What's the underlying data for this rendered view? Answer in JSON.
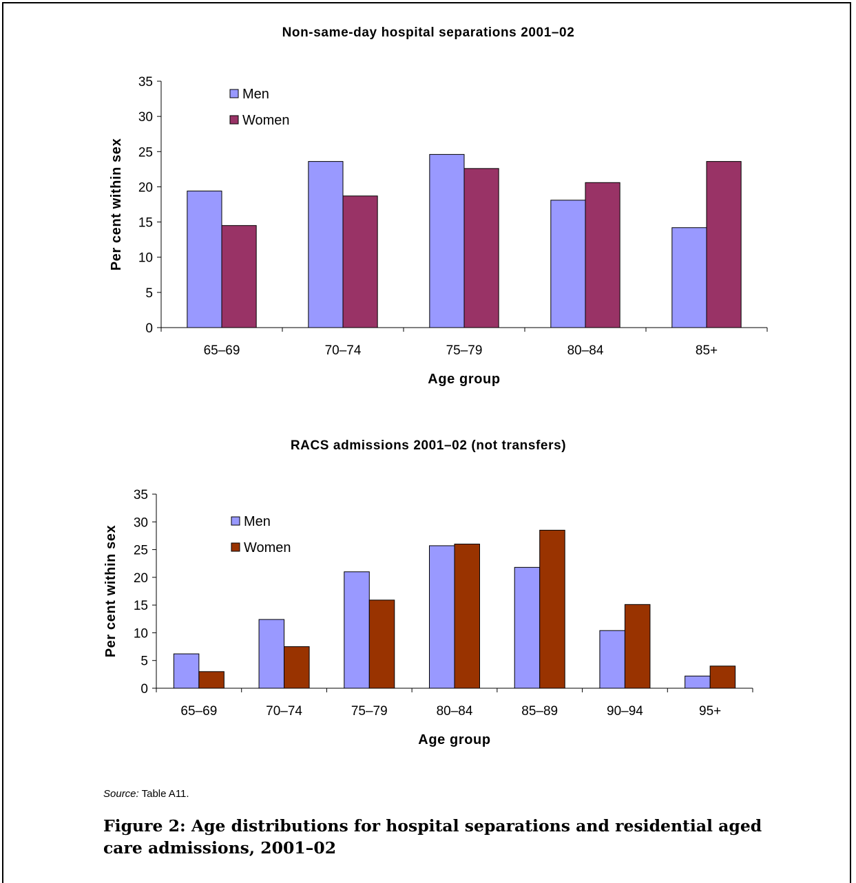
{
  "chart_data": [
    {
      "type": "bar",
      "title": "Non-same-day hospital separations 2001–02",
      "xlabel": "Age group",
      "ylabel": "Per cent within sex",
      "ylim": [
        0,
        35
      ],
      "yticks": [
        "0",
        "5",
        "10",
        "15",
        "20",
        "25",
        "30",
        "35"
      ],
      "categories": [
        "65–69",
        "70–74",
        "75–79",
        "80–84",
        "85+"
      ],
      "series": [
        {
          "name": "Men",
          "color": "#9999ff",
          "values": [
            19.4,
            23.6,
            24.6,
            18.1,
            14.2
          ]
        },
        {
          "name": "Women",
          "color": "#993366",
          "values": [
            14.5,
            18.7,
            22.6,
            20.6,
            23.6
          ]
        }
      ],
      "legend": "top-left",
      "grid": false
    },
    {
      "type": "bar",
      "title": "RACS admissions 2001–02 (not transfers)",
      "xlabel": "Age group",
      "ylabel": "Per cent within sex",
      "ylim": [
        0,
        35
      ],
      "yticks": [
        "0",
        "5",
        "10",
        "15",
        "20",
        "25",
        "30",
        "35"
      ],
      "categories": [
        "65–69",
        "70–74",
        "75–79",
        "80–84",
        "85–89",
        "90–94",
        "95+"
      ],
      "series": [
        {
          "name": "Men",
          "color": "#9999ff",
          "values": [
            6.2,
            12.4,
            21.0,
            25.7,
            21.8,
            10.4,
            2.2
          ]
        },
        {
          "name": "Women",
          "color": "#993300",
          "values": [
            3.0,
            7.5,
            15.9,
            26.0,
            28.5,
            15.1,
            4.0
          ]
        }
      ],
      "legend": "top-left",
      "grid": false
    }
  ],
  "source": {
    "label": "Source:",
    "text": "Table A11."
  },
  "caption": "Figure 2: Age distributions for hospital separations and residential aged care admissions, 2001–02"
}
